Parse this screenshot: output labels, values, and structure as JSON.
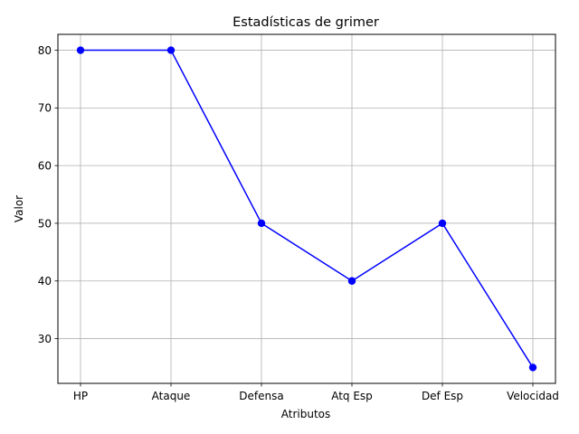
{
  "chart_data": {
    "type": "line",
    "title": "Estadísticas de grimer",
    "xlabel": "Atributos",
    "ylabel": "Valor",
    "categories": [
      "HP",
      "Ataque",
      "Defensa",
      "Atq Esp",
      "Def Esp",
      "Velocidad"
    ],
    "series": [
      {
        "values": [
          80,
          80,
          50,
          40,
          50,
          25
        ],
        "color": "#0000ff",
        "marker": "circle"
      }
    ],
    "ylim": [
      22.25,
      82.75
    ],
    "yticks": [
      30,
      40,
      50,
      60,
      70,
      80
    ],
    "grid": true,
    "grid_color": "#b0b0b0"
  }
}
